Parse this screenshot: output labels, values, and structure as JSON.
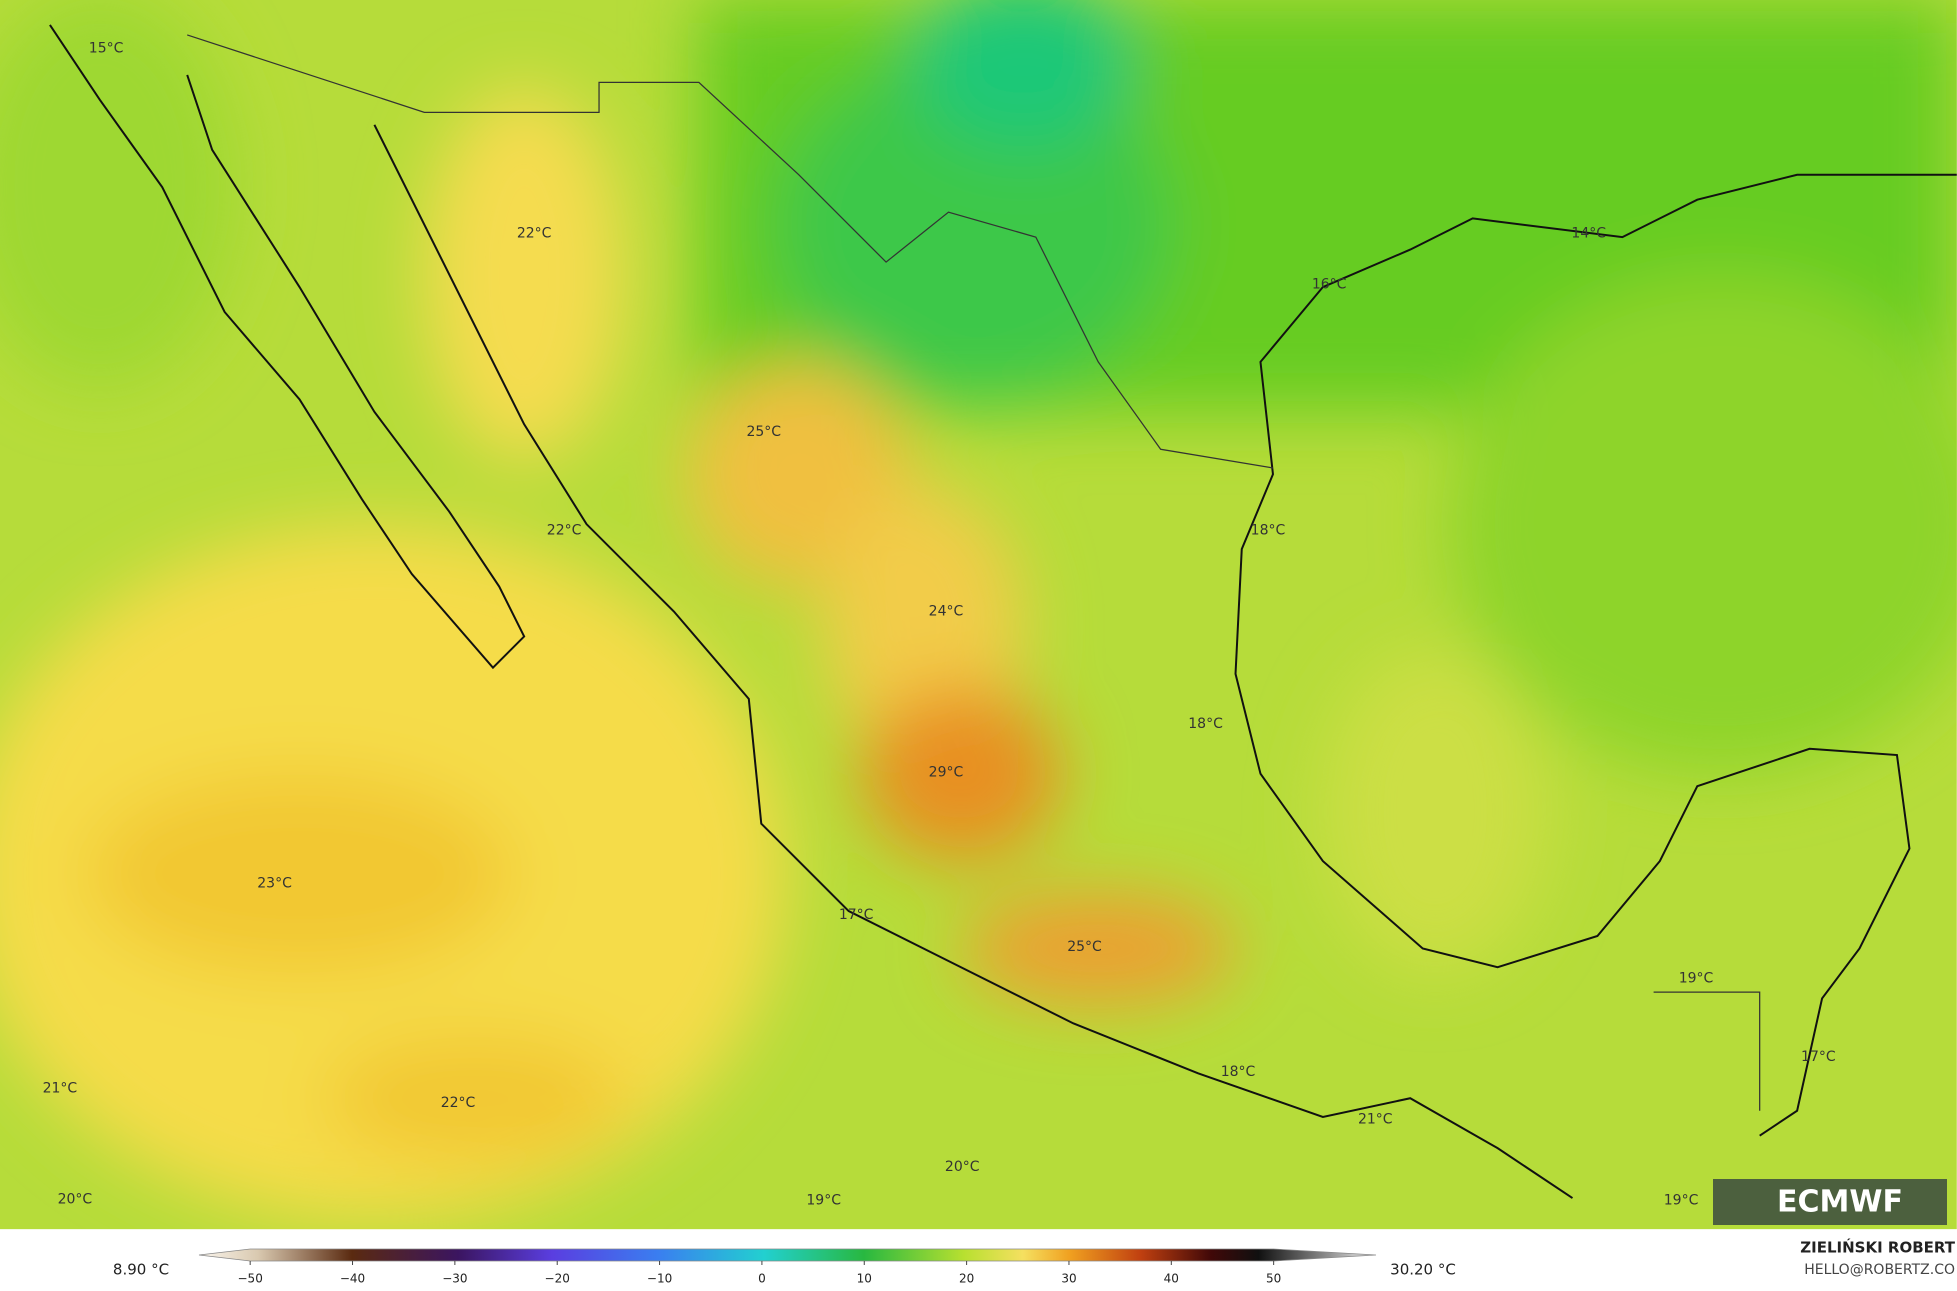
{
  "map": {
    "labels": [
      "15°C",
      "22°C",
      "25°C",
      "22°C",
      "14°C",
      "16°C",
      "18°C",
      "24°C",
      "18°C",
      "29°C",
      "23°C",
      "17°C",
      "25°C",
      "19°C",
      "17°C",
      "18°C",
      "21°C",
      "22°C",
      "21°C",
      "20°C",
      "20°C",
      "19°C",
      "19°C"
    ],
    "logo": "ECMWF"
  },
  "colorbar": {
    "range": [
      -55,
      60
    ],
    "ticks": [
      {
        "value": -50,
        "label": "−50"
      },
      {
        "value": -40,
        "label": "−40"
      },
      {
        "value": -30,
        "label": "−30"
      },
      {
        "value": -20,
        "label": "−20"
      },
      {
        "value": -10,
        "label": "−10"
      },
      0,
      10,
      20,
      30,
      40,
      50
    ],
    "min_label": "8.90 °C",
    "max_label": "30.20 °C"
  },
  "credits": {
    "author": "ZIELIŃSKI ROBERT",
    "contact": "HELLO@ROBERTZ.CO"
  }
}
